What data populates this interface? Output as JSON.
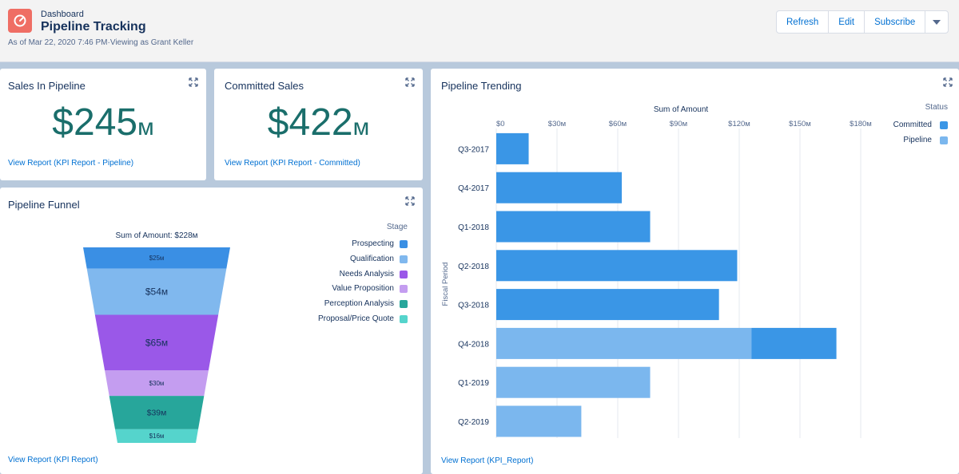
{
  "header": {
    "breadcrumb": "Dashboard",
    "title": "Pipeline Tracking",
    "subtitle": "As of Mar 22, 2020 7:46 PM·Viewing as Grant Keller",
    "buttons": {
      "refresh": "Refresh",
      "edit": "Edit",
      "subscribe": "Subscribe"
    },
    "app_icon": "dashboard-gauge-icon",
    "app_icon_color": "#ef6e64"
  },
  "sales_in_pipeline": {
    "title": "Sales In Pipeline",
    "value": "$245",
    "unit": "м",
    "link": "View Report (KPI Report - Pipeline)"
  },
  "committed_sales": {
    "title": "Committed Sales",
    "value": "$422",
    "unit": "м",
    "link": "View Report (KPI Report - Committed)"
  },
  "pipeline_funnel": {
    "title": "Pipeline Funnel",
    "link": "View Report (KPI Report)",
    "legend_title": "Stage"
  },
  "pipeline_trending": {
    "title": "Pipeline Trending",
    "link": "View Report (KPI_Report)",
    "legend_title": "Status"
  },
  "chart_data": [
    {
      "type": "funnel",
      "title": "Sum of Amount: $228м",
      "legend": "right",
      "series": [
        {
          "name": "Prospecting",
          "value": 25,
          "label": "$25м",
          "color": "#3a8fe4"
        },
        {
          "name": "Qualification",
          "value": 54,
          "label": "$54м",
          "color": "#80b8ee"
        },
        {
          "name": "Needs Analysis",
          "value": 65,
          "label": "$65м",
          "color": "#9a58e8"
        },
        {
          "name": "Value Proposition",
          "value": 30,
          "label": "$30м",
          "color": "#c49df0"
        },
        {
          "name": "Perception Analysis",
          "value": 39,
          "label": "$39м",
          "color": "#27a69b"
        },
        {
          "name": "Proposal/Price Quote",
          "value": 16,
          "label": "$16м",
          "color": "#55d4cc"
        }
      ]
    },
    {
      "type": "bar",
      "orientation": "horizontal",
      "stacked": true,
      "title": "Sum of Amount",
      "xlabel": "",
      "ylabel": "Fiscal Period",
      "xlim": [
        0,
        180
      ],
      "xticks": [
        0,
        30,
        60,
        90,
        120,
        150,
        180
      ],
      "xtick_labels": [
        "$0",
        "$30м",
        "$60м",
        "$90м",
        "$120м",
        "$150м",
        "$180м"
      ],
      "grid": true,
      "legend": "right",
      "categories": [
        "Q3-2017",
        "Q4-2017",
        "Q1-2018",
        "Q2-2018",
        "Q3-2018",
        "Q4-2018",
        "Q1-2019",
        "Q2-2019"
      ],
      "series": [
        {
          "name": "Pipeline",
          "color": "#7bb7ee",
          "values": [
            0,
            0,
            0,
            0,
            0,
            126,
            76,
            42
          ]
        },
        {
          "name": "Committed",
          "color": "#3a96e6",
          "values": [
            16,
            62,
            76,
            119,
            110,
            42,
            0,
            0
          ]
        }
      ],
      "legend_order": [
        "Committed",
        "Pipeline"
      ]
    }
  ]
}
